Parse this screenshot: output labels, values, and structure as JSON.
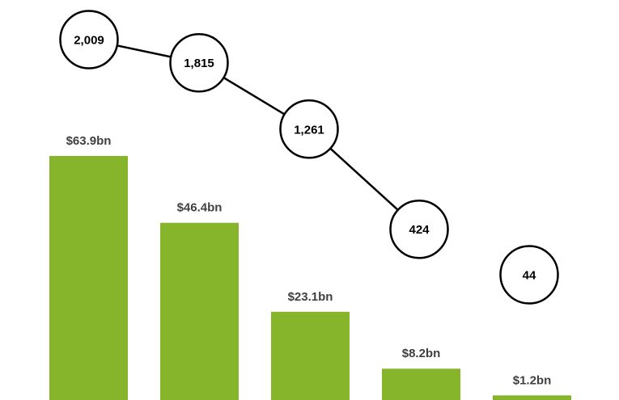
{
  "chart_data": {
    "type": "bar",
    "bars": {
      "values": [
        63.9,
        46.4,
        23.1,
        8.2,
        1.2
      ],
      "labels": [
        "$63.9bn",
        "$46.4bn",
        "$23.1bn",
        "$8.2bn",
        "$1.2bn"
      ],
      "color": "#86b52c"
    },
    "line": {
      "values": [
        2009,
        1815,
        1261,
        424,
        44
      ],
      "labels": [
        "2,009",
        "1,815",
        "1,261",
        "424",
        "44"
      ],
      "connected_points": 4,
      "marker_fill": "#ffffff",
      "marker_stroke": "#000000"
    },
    "label_color": "#404040",
    "grid": false,
    "legend": "none"
  }
}
